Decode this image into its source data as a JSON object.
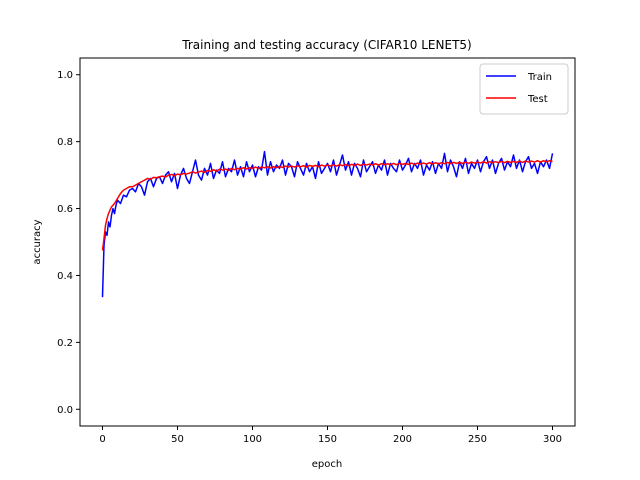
{
  "chart_data": {
    "type": "line",
    "title": "Training and testing accuracy (CIFAR10 LENET5)",
    "xlabel": "epoch",
    "ylabel": "accuracy",
    "xlim": [
      -15,
      315
    ],
    "ylim": [
      -0.05,
      1.05
    ],
    "xticks": [
      0,
      50,
      100,
      150,
      200,
      250,
      300
    ],
    "yticks": [
      0.0,
      0.2,
      0.4,
      0.6,
      0.8,
      1.0
    ],
    "xtick_labels": [
      "0",
      "50",
      "100",
      "150",
      "200",
      "250",
      "300"
    ],
    "ytick_labels": [
      "0.0",
      "0.2",
      "0.4",
      "0.6",
      "0.8",
      "1.0"
    ],
    "grid": false,
    "legend_position": "top-right",
    "series": [
      {
        "name": "Train",
        "color": "#0000ff",
        "points": [
          [
            0,
            0.335
          ],
          [
            1,
            0.49
          ],
          [
            2,
            0.53
          ],
          [
            3,
            0.52
          ],
          [
            4,
            0.56
          ],
          [
            5,
            0.545
          ],
          [
            6,
            0.58
          ],
          [
            7,
            0.6
          ],
          [
            8,
            0.585
          ],
          [
            9,
            0.61
          ],
          [
            10,
            0.625
          ],
          [
            12,
            0.615
          ],
          [
            14,
            0.64
          ],
          [
            16,
            0.635
          ],
          [
            18,
            0.655
          ],
          [
            20,
            0.66
          ],
          [
            22,
            0.65
          ],
          [
            24,
            0.675
          ],
          [
            26,
            0.665
          ],
          [
            28,
            0.64
          ],
          [
            30,
            0.68
          ],
          [
            32,
            0.69
          ],
          [
            34,
            0.665
          ],
          [
            36,
            0.69
          ],
          [
            38,
            0.695
          ],
          [
            40,
            0.675
          ],
          [
            42,
            0.7
          ],
          [
            44,
            0.71
          ],
          [
            46,
            0.68
          ],
          [
            48,
            0.705
          ],
          [
            50,
            0.66
          ],
          [
            52,
            0.7
          ],
          [
            54,
            0.72
          ],
          [
            56,
            0.69
          ],
          [
            58,
            0.675
          ],
          [
            60,
            0.71
          ],
          [
            62,
            0.745
          ],
          [
            64,
            0.7
          ],
          [
            66,
            0.685
          ],
          [
            68,
            0.72
          ],
          [
            70,
            0.7
          ],
          [
            72,
            0.735
          ],
          [
            74,
            0.69
          ],
          [
            76,
            0.715
          ],
          [
            78,
            0.705
          ],
          [
            80,
            0.74
          ],
          [
            82,
            0.695
          ],
          [
            84,
            0.72
          ],
          [
            86,
            0.71
          ],
          [
            88,
            0.745
          ],
          [
            90,
            0.7
          ],
          [
            92,
            0.725
          ],
          [
            94,
            0.695
          ],
          [
            96,
            0.74
          ],
          [
            98,
            0.71
          ],
          [
            100,
            0.73
          ],
          [
            102,
            0.695
          ],
          [
            104,
            0.725
          ],
          [
            106,
            0.715
          ],
          [
            108,
            0.77
          ],
          [
            110,
            0.7
          ],
          [
            112,
            0.74
          ],
          [
            114,
            0.71
          ],
          [
            116,
            0.73
          ],
          [
            118,
            0.72
          ],
          [
            120,
            0.745
          ],
          [
            122,
            0.7
          ],
          [
            124,
            0.735
          ],
          [
            126,
            0.725
          ],
          [
            128,
            0.695
          ],
          [
            130,
            0.74
          ],
          [
            132,
            0.72
          ],
          [
            134,
            0.7
          ],
          [
            136,
            0.735
          ],
          [
            138,
            0.71
          ],
          [
            140,
            0.725
          ],
          [
            142,
            0.69
          ],
          [
            144,
            0.74
          ],
          [
            146,
            0.705
          ],
          [
            148,
            0.72
          ],
          [
            150,
            0.735
          ],
          [
            152,
            0.71
          ],
          [
            154,
            0.745
          ],
          [
            156,
            0.7
          ],
          [
            158,
            0.73
          ],
          [
            160,
            0.76
          ],
          [
            162,
            0.715
          ],
          [
            164,
            0.74
          ],
          [
            166,
            0.7
          ],
          [
            168,
            0.735
          ],
          [
            170,
            0.72
          ],
          [
            172,
            0.695
          ],
          [
            174,
            0.745
          ],
          [
            176,
            0.71
          ],
          [
            178,
            0.725
          ],
          [
            180,
            0.74
          ],
          [
            182,
            0.705
          ],
          [
            184,
            0.73
          ],
          [
            186,
            0.715
          ],
          [
            188,
            0.745
          ],
          [
            190,
            0.7
          ],
          [
            192,
            0.735
          ],
          [
            194,
            0.72
          ],
          [
            196,
            0.71
          ],
          [
            198,
            0.745
          ],
          [
            200,
            0.715
          ],
          [
            202,
            0.73
          ],
          [
            204,
            0.75
          ],
          [
            206,
            0.71
          ],
          [
            208,
            0.735
          ],
          [
            210,
            0.72
          ],
          [
            212,
            0.745
          ],
          [
            214,
            0.7
          ],
          [
            216,
            0.73
          ],
          [
            218,
            0.715
          ],
          [
            220,
            0.74
          ],
          [
            222,
            0.705
          ],
          [
            224,
            0.735
          ],
          [
            226,
            0.72
          ],
          [
            228,
            0.765
          ],
          [
            230,
            0.71
          ],
          [
            232,
            0.745
          ],
          [
            234,
            0.725
          ],
          [
            236,
            0.695
          ],
          [
            238,
            0.74
          ],
          [
            240,
            0.72
          ],
          [
            242,
            0.75
          ],
          [
            244,
            0.705
          ],
          [
            246,
            0.735
          ],
          [
            248,
            0.72
          ],
          [
            250,
            0.745
          ],
          [
            252,
            0.71
          ],
          [
            254,
            0.74
          ],
          [
            256,
            0.755
          ],
          [
            258,
            0.72
          ],
          [
            260,
            0.745
          ],
          [
            262,
            0.705
          ],
          [
            264,
            0.735
          ],
          [
            266,
            0.75
          ],
          [
            268,
            0.715
          ],
          [
            270,
            0.74
          ],
          [
            272,
            0.725
          ],
          [
            274,
            0.76
          ],
          [
            276,
            0.72
          ],
          [
            278,
            0.745
          ],
          [
            280,
            0.71
          ],
          [
            282,
            0.74
          ],
          [
            284,
            0.755
          ],
          [
            286,
            0.72
          ],
          [
            288,
            0.735
          ],
          [
            290,
            0.705
          ],
          [
            292,
            0.74
          ],
          [
            294,
            0.725
          ],
          [
            296,
            0.745
          ],
          [
            298,
            0.72
          ],
          [
            300,
            0.765
          ]
        ]
      },
      {
        "name": "Test",
        "color": "#ff0000",
        "points": [
          [
            0,
            0.475
          ],
          [
            1,
            0.51
          ],
          [
            2,
            0.55
          ],
          [
            3,
            0.57
          ],
          [
            4,
            0.585
          ],
          [
            5,
            0.595
          ],
          [
            6,
            0.605
          ],
          [
            8,
            0.615
          ],
          [
            10,
            0.63
          ],
          [
            12,
            0.645
          ],
          [
            14,
            0.655
          ],
          [
            16,
            0.66
          ],
          [
            18,
            0.665
          ],
          [
            20,
            0.665
          ],
          [
            22,
            0.67
          ],
          [
            24,
            0.675
          ],
          [
            26,
            0.68
          ],
          [
            28,
            0.685
          ],
          [
            30,
            0.69
          ],
          [
            32,
            0.688
          ],
          [
            34,
            0.693
          ],
          [
            36,
            0.692
          ],
          [
            38,
            0.695
          ],
          [
            40,
            0.697
          ],
          [
            42,
            0.694
          ],
          [
            44,
            0.7
          ],
          [
            46,
            0.702
          ],
          [
            48,
            0.698
          ],
          [
            50,
            0.703
          ],
          [
            52,
            0.701
          ],
          [
            54,
            0.705
          ],
          [
            56,
            0.703
          ],
          [
            58,
            0.706
          ],
          [
            60,
            0.71
          ],
          [
            62,
            0.706
          ],
          [
            64,
            0.709
          ],
          [
            66,
            0.712
          ],
          [
            68,
            0.708
          ],
          [
            70,
            0.714
          ],
          [
            72,
            0.711
          ],
          [
            74,
            0.716
          ],
          [
            76,
            0.712
          ],
          [
            78,
            0.718
          ],
          [
            80,
            0.715
          ],
          [
            82,
            0.718
          ],
          [
            84,
            0.714
          ],
          [
            86,
            0.72
          ],
          [
            88,
            0.716
          ],
          [
            90,
            0.72
          ],
          [
            92,
            0.718
          ],
          [
            94,
            0.722
          ],
          [
            96,
            0.718
          ],
          [
            98,
            0.722
          ],
          [
            100,
            0.72
          ],
          [
            102,
            0.724
          ],
          [
            104,
            0.72
          ],
          [
            106,
            0.724
          ],
          [
            108,
            0.722
          ],
          [
            110,
            0.725
          ],
          [
            112,
            0.721
          ],
          [
            114,
            0.725
          ],
          [
            116,
            0.722
          ],
          [
            118,
            0.726
          ],
          [
            120,
            0.723
          ],
          [
            122,
            0.727
          ],
          [
            124,
            0.724
          ],
          [
            126,
            0.727
          ],
          [
            128,
            0.724
          ],
          [
            130,
            0.728
          ],
          [
            132,
            0.725
          ],
          [
            134,
            0.728
          ],
          [
            136,
            0.724
          ],
          [
            138,
            0.729
          ],
          [
            140,
            0.726
          ],
          [
            142,
            0.729
          ],
          [
            144,
            0.725
          ],
          [
            146,
            0.73
          ],
          [
            148,
            0.727
          ],
          [
            150,
            0.73
          ],
          [
            152,
            0.727
          ],
          [
            154,
            0.731
          ],
          [
            156,
            0.727
          ],
          [
            158,
            0.731
          ],
          [
            160,
            0.728
          ],
          [
            162,
            0.732
          ],
          [
            164,
            0.728
          ],
          [
            166,
            0.732
          ],
          [
            168,
            0.729
          ],
          [
            170,
            0.733
          ],
          [
            172,
            0.729
          ],
          [
            174,
            0.733
          ],
          [
            176,
            0.73
          ],
          [
            178,
            0.733
          ],
          [
            180,
            0.73
          ],
          [
            182,
            0.734
          ],
          [
            184,
            0.73
          ],
          [
            186,
            0.734
          ],
          [
            188,
            0.731
          ],
          [
            190,
            0.734
          ],
          [
            192,
            0.731
          ],
          [
            194,
            0.735
          ],
          [
            196,
            0.731
          ],
          [
            198,
            0.735
          ],
          [
            200,
            0.732
          ],
          [
            202,
            0.735
          ],
          [
            204,
            0.732
          ],
          [
            206,
            0.736
          ],
          [
            208,
            0.732
          ],
          [
            210,
            0.736
          ],
          [
            212,
            0.733
          ],
          [
            214,
            0.736
          ],
          [
            216,
            0.733
          ],
          [
            218,
            0.737
          ],
          [
            220,
            0.733
          ],
          [
            222,
            0.737
          ],
          [
            224,
            0.734
          ],
          [
            226,
            0.737
          ],
          [
            228,
            0.734
          ],
          [
            230,
            0.738
          ],
          [
            232,
            0.734
          ],
          [
            234,
            0.738
          ],
          [
            236,
            0.735
          ],
          [
            238,
            0.738
          ],
          [
            240,
            0.735
          ],
          [
            242,
            0.739
          ],
          [
            244,
            0.735
          ],
          [
            246,
            0.739
          ],
          [
            248,
            0.736
          ],
          [
            250,
            0.739
          ],
          [
            252,
            0.736
          ],
          [
            254,
            0.74
          ],
          [
            256,
            0.736
          ],
          [
            258,
            0.74
          ],
          [
            260,
            0.737
          ],
          [
            262,
            0.74
          ],
          [
            264,
            0.737
          ],
          [
            266,
            0.741
          ],
          [
            268,
            0.737
          ],
          [
            270,
            0.741
          ],
          [
            272,
            0.738
          ],
          [
            274,
            0.741
          ],
          [
            276,
            0.738
          ],
          [
            278,
            0.742
          ],
          [
            280,
            0.738
          ],
          [
            282,
            0.742
          ],
          [
            284,
            0.739
          ],
          [
            286,
            0.742
          ],
          [
            288,
            0.739
          ],
          [
            290,
            0.743
          ],
          [
            292,
            0.739
          ],
          [
            294,
            0.743
          ],
          [
            296,
            0.74
          ],
          [
            298,
            0.743
          ],
          [
            300,
            0.741
          ]
        ]
      }
    ]
  }
}
